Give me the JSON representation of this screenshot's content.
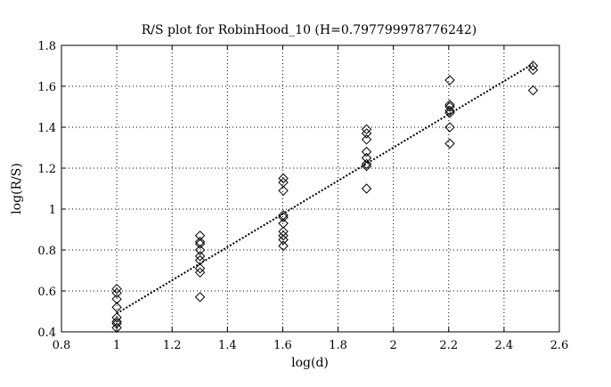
{
  "chart_data": {
    "type": "scatter",
    "title": "R/S plot for RobinHood_10 (H=0.797799978776242)",
    "xlabel": "log(d)",
    "ylabel": "log(R/S)",
    "xlim": [
      0.8,
      2.6
    ],
    "ylim": [
      0.4,
      1.8
    ],
    "xticks": [
      0.8,
      1,
      1.2,
      1.4,
      1.6,
      1.8,
      2,
      2.2,
      2.4,
      2.6
    ],
    "xtick_labels": [
      "0.8",
      "1",
      "1.2",
      "1.4",
      "1.6",
      "1.8",
      "2",
      "2.2",
      "2.4",
      "2.6"
    ],
    "yticks": [
      0.4,
      0.6,
      0.8,
      1,
      1.2,
      1.4,
      1.6,
      1.8
    ],
    "ytick_labels": [
      "0.4",
      "0.6",
      "0.8",
      "1",
      "1.2",
      "1.4",
      "1.6",
      "1.8"
    ],
    "grid": true,
    "marker": "diamond",
    "points": [
      {
        "x": 1.0,
        "y": 0.61
      },
      {
        "x": 1.0,
        "y": 0.59
      },
      {
        "x": 1.0,
        "y": 0.56
      },
      {
        "x": 1.0,
        "y": 0.52
      },
      {
        "x": 1.0,
        "y": 0.47
      },
      {
        "x": 1.0,
        "y": 0.45
      },
      {
        "x": 1.0,
        "y": 0.44
      },
      {
        "x": 1.0,
        "y": 0.42
      },
      {
        "x": 1.301,
        "y": 0.87
      },
      {
        "x": 1.301,
        "y": 0.84
      },
      {
        "x": 1.301,
        "y": 0.83
      },
      {
        "x": 1.301,
        "y": 0.8
      },
      {
        "x": 1.301,
        "y": 0.77
      },
      {
        "x": 1.301,
        "y": 0.75
      },
      {
        "x": 1.301,
        "y": 0.71
      },
      {
        "x": 1.301,
        "y": 0.69
      },
      {
        "x": 1.301,
        "y": 0.57
      },
      {
        "x": 1.602,
        "y": 1.15
      },
      {
        "x": 1.602,
        "y": 1.13
      },
      {
        "x": 1.602,
        "y": 1.09
      },
      {
        "x": 1.602,
        "y": 0.97
      },
      {
        "x": 1.602,
        "y": 0.96
      },
      {
        "x": 1.602,
        "y": 0.93
      },
      {
        "x": 1.602,
        "y": 0.89
      },
      {
        "x": 1.602,
        "y": 0.87
      },
      {
        "x": 1.602,
        "y": 0.85
      },
      {
        "x": 1.602,
        "y": 0.82
      },
      {
        "x": 1.903,
        "y": 1.39
      },
      {
        "x": 1.903,
        "y": 1.37
      },
      {
        "x": 1.903,
        "y": 1.34
      },
      {
        "x": 1.903,
        "y": 1.28
      },
      {
        "x": 1.903,
        "y": 1.25
      },
      {
        "x": 1.903,
        "y": 1.22
      },
      {
        "x": 1.903,
        "y": 1.21
      },
      {
        "x": 1.903,
        "y": 1.1
      },
      {
        "x": 2.204,
        "y": 1.63
      },
      {
        "x": 2.204,
        "y": 1.51
      },
      {
        "x": 2.204,
        "y": 1.5
      },
      {
        "x": 2.204,
        "y": 1.48
      },
      {
        "x": 2.204,
        "y": 1.47
      },
      {
        "x": 2.204,
        "y": 1.4
      },
      {
        "x": 2.204,
        "y": 1.32
      },
      {
        "x": 2.505,
        "y": 1.7
      },
      {
        "x": 2.505,
        "y": 1.68
      },
      {
        "x": 2.505,
        "y": 1.58
      }
    ],
    "fit_line": {
      "x": [
        1.0,
        2.505
      ],
      "y": [
        0.49,
        1.71
      ]
    }
  }
}
